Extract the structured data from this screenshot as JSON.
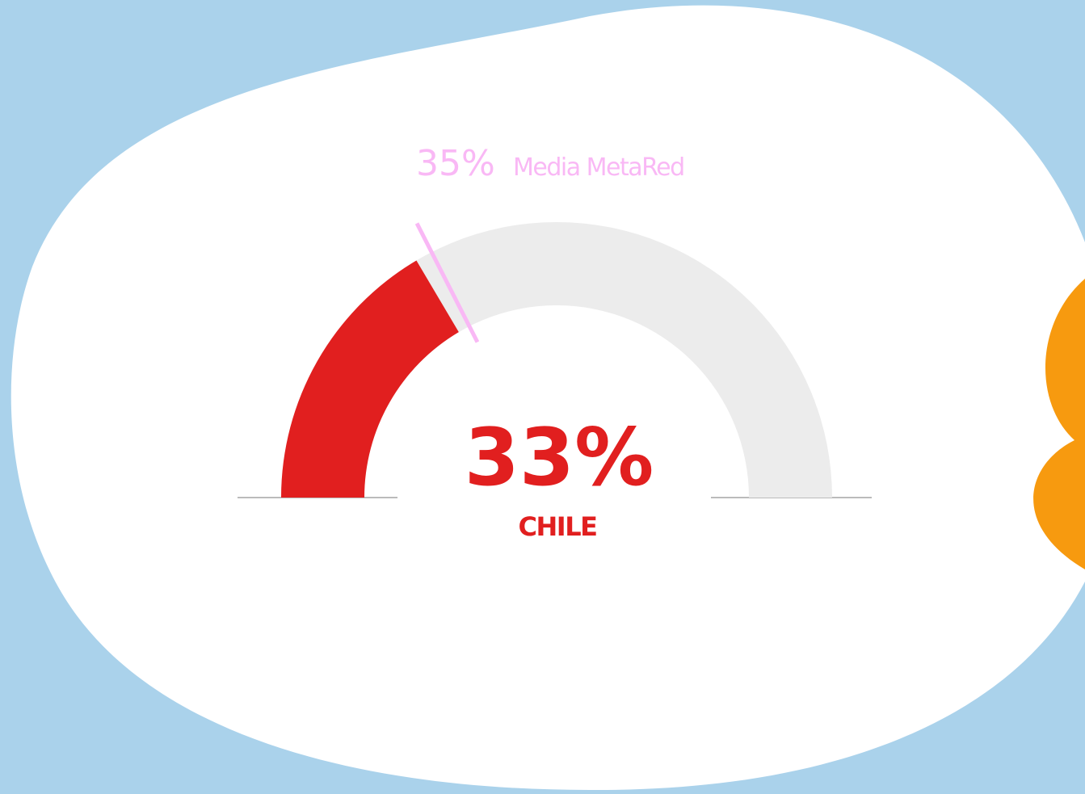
{
  "chart_data": {
    "type": "gauge",
    "categories": [
      "CHILE"
    ],
    "values": [
      33
    ],
    "value_labels": [
      "33%"
    ],
    "reference_name": "Media MetaRed",
    "reference_value": 35,
    "reference_label": "35%",
    "ylim": [
      0,
      100
    ],
    "color": "#e11f1f",
    "reference_color": "#f9b8f5",
    "track_color": "#ececec"
  }
}
